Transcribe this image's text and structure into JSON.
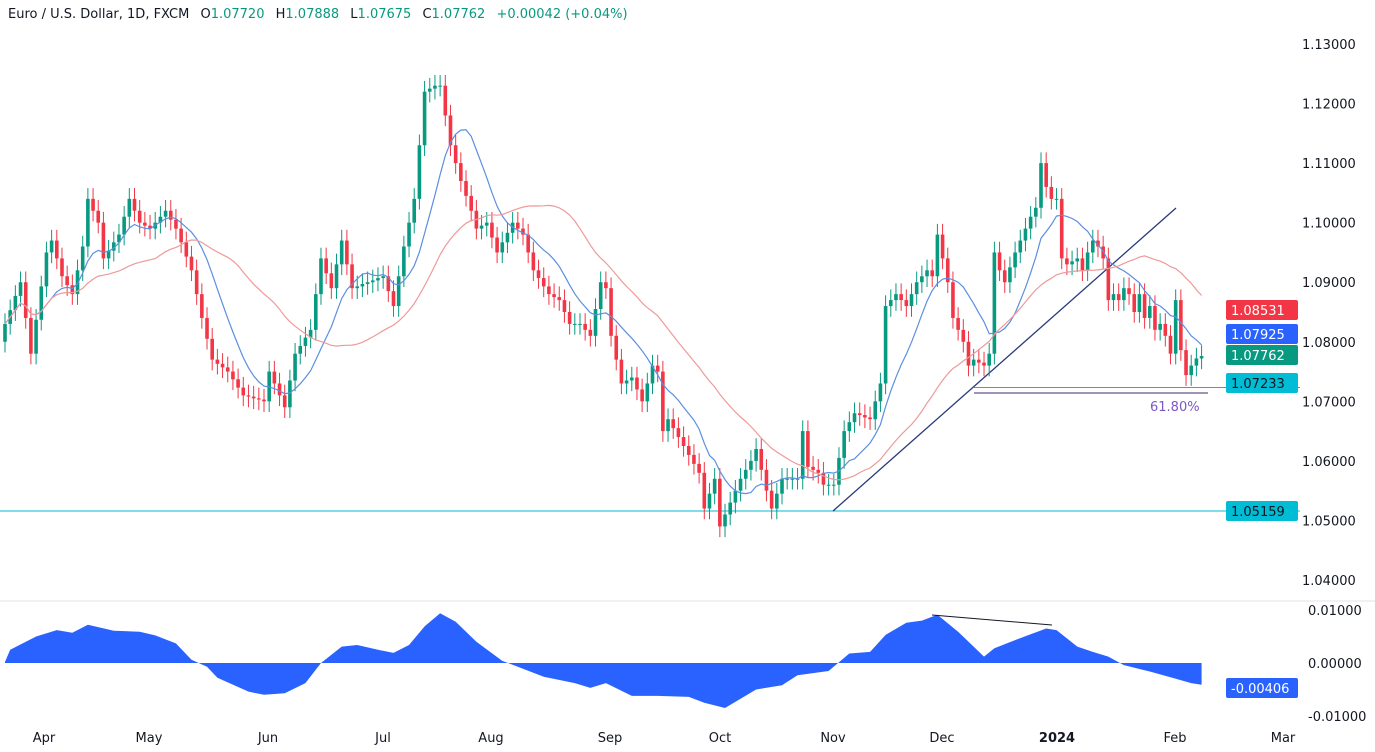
{
  "header": {
    "symbol": "Euro / U.S. Dollar, 1D, FXCM",
    "open_label": "O",
    "open": "1.07720",
    "high_label": "H",
    "high": "1.07888",
    "low_label": "L",
    "low": "1.07675",
    "close_label": "C",
    "close": "1.07762",
    "change": "+0.00042 (+0.04%)"
  },
  "colors": {
    "up": "#089981",
    "down": "#f23645",
    "ma_fast": "#5b8fe0",
    "ma_slow": "#ee9a9a",
    "oscillator": "#2962ff",
    "support": "#00bcd4",
    "trendline": "#2a3a7c",
    "fib": "#7e57c2"
  },
  "chart_data": {
    "type": "candlestick",
    "price_axis": {
      "ticks": [
        "1.13000",
        "1.12000",
        "1.11000",
        "1.10000",
        "1.09000",
        "1.08000",
        "1.07000",
        "1.06000",
        "1.05000",
        "1.04000"
      ],
      "range": [
        1.0325,
        1.1375
      ]
    },
    "time_axis": {
      "ticks": [
        "Apr",
        "May",
        "Jun",
        "Jul",
        "Aug",
        "Sep",
        "Oct",
        "Nov",
        "Dec",
        "2024",
        "Feb",
        "Mar"
      ]
    },
    "close": [
      1.083,
      1.0853,
      1.0877,
      1.09,
      1.084,
      1.078,
      1.0837,
      1.0893,
      1.095,
      1.097,
      1.094,
      1.091,
      1.0895,
      1.088,
      1.092,
      1.096,
      1.104,
      1.102,
      1.1,
      1.094,
      1.0953,
      1.0967,
      1.098,
      1.101,
      1.104,
      1.102,
      1.1,
      1.0995,
      1.099,
      1.1,
      1.101,
      1.102,
      1.1005,
      1.099,
      1.0967,
      1.0943,
      1.092,
      1.088,
      1.084,
      1.0805,
      1.077,
      1.0763,
      1.0757,
      1.075,
      1.0737,
      1.0723,
      1.071,
      1.0708,
      1.0705,
      1.0703,
      1.07,
      1.075,
      1.073,
      1.071,
      1.069,
      1.0735,
      1.078,
      1.0793,
      1.0807,
      1.082,
      1.088,
      1.094,
      1.0915,
      1.089,
      1.093,
      1.097,
      1.093,
      1.089,
      1.0893,
      1.0897,
      1.09,
      1.0903,
      1.0907,
      1.091,
      1.0885,
      1.086,
      1.091,
      1.096,
      1.1,
      1.104,
      1.113,
      1.122,
      1.1225,
      1.123,
      1.123,
      1.118,
      1.113,
      1.11,
      1.107,
      1.1045,
      1.102,
      1.099,
      1.0995,
      1.1,
      1.0975,
      1.095,
      1.0967,
      1.0983,
      1.1,
      1.099,
      1.098,
      1.095,
      1.092,
      1.0907,
      1.0893,
      1.088,
      1.0875,
      1.087,
      1.085,
      1.083,
      1.083,
      1.083,
      1.082,
      1.081,
      1.0855,
      1.09,
      1.089,
      1.081,
      1.077,
      1.073,
      1.0735,
      1.074,
      1.072,
      1.07,
      1.073,
      1.076,
      1.075,
      1.065,
      1.067,
      1.0655,
      1.064,
      1.0625,
      1.061,
      1.0595,
      1.058,
      1.052,
      1.0545,
      1.057,
      1.049,
      1.051,
      1.053,
      1.055,
      1.057,
      1.0585,
      1.06,
      1.062,
      1.0585,
      1.055,
      1.052,
      1.0545,
      1.057,
      1.057,
      1.057,
      1.057,
      1.065,
      1.059,
      1.0585,
      1.058,
      1.056,
      1.056,
      1.056,
      1.0605,
      1.065,
      1.0665,
      1.068,
      1.0677,
      1.0673,
      1.067,
      1.07,
      1.073,
      1.086,
      1.087,
      1.088,
      1.087,
      1.086,
      1.088,
      1.09,
      1.091,
      1.092,
      1.091,
      1.098,
      1.094,
      1.09,
      1.084,
      1.082,
      1.08,
      1.076,
      1.077,
      1.0765,
      1.076,
      1.078,
      1.095,
      1.092,
      1.09,
      1.0925,
      1.095,
      1.097,
      1.099,
      1.101,
      1.1025,
      1.11,
      1.106,
      1.104,
      1.104,
      1.094,
      1.093,
      1.0935,
      1.094,
      1.092,
      1.095,
      1.097,
      1.096,
      1.094,
      1.087,
      1.088,
      1.087,
      1.089,
      1.088,
      1.085,
      1.088,
      1.084,
      1.086,
      1.082,
      1.083,
      1.081,
      1.078,
      1.087,
      1.0786,
      1.0744,
      1.076,
      1.0772,
      1.0776
    ],
    "last_open": 1.0772,
    "oscillator": {
      "axis_ticks": [
        "0.01000",
        "0.00000",
        "-0.01000"
      ],
      "range": [
        -0.0101,
        0.0101
      ],
      "points": [
        [
          0,
          0.0002
        ],
        [
          1,
          0.0025
        ],
        [
          6,
          0.005
        ],
        [
          10,
          0.0062
        ],
        [
          13,
          0.0057
        ],
        [
          16,
          0.0072
        ],
        [
          21,
          0.0061
        ],
        [
          26,
          0.0059
        ],
        [
          29,
          0.0052
        ],
        [
          33,
          0.0037
        ],
        [
          36,
          0.0006
        ],
        [
          39,
          -0.0007
        ],
        [
          41,
          -0.0028
        ],
        [
          47,
          -0.0054
        ],
        [
          50,
          -0.006
        ],
        [
          54,
          -0.0057
        ],
        [
          58,
          -0.0038
        ],
        [
          61,
          0
        ],
        [
          65,
          0.0031
        ],
        [
          68,
          0.0034
        ],
        [
          72,
          0.0025
        ],
        [
          75,
          0.0019
        ],
        [
          78,
          0.0034
        ],
        [
          81,
          0.0069
        ],
        [
          84,
          0.0094
        ],
        [
          87,
          0.0078
        ],
        [
          91,
          0.004
        ],
        [
          96,
          0.0004
        ],
        [
          99,
          -0.0007
        ],
        [
          104,
          -0.0026
        ],
        [
          110,
          -0.0038
        ],
        [
          113,
          -0.0047
        ],
        [
          116,
          -0.0038
        ],
        [
          121,
          -0.0062
        ],
        [
          126,
          -0.0062
        ],
        [
          132,
          -0.0064
        ],
        [
          135,
          -0.0075
        ],
        [
          139,
          -0.0085
        ],
        [
          145,
          -0.005
        ],
        [
          150,
          -0.0042
        ],
        [
          153,
          -0.0023
        ],
        [
          159,
          -0.0015
        ],
        [
          163,
          0.0018
        ],
        [
          167,
          0.0021
        ],
        [
          170,
          0.0053
        ],
        [
          174,
          0.0076
        ],
        [
          177,
          0.008
        ],
        [
          180,
          0.0091
        ],
        [
          184,
          0.0059
        ],
        [
          189,
          0.0012
        ],
        [
          191,
          0.0028
        ],
        [
          196,
          0.0047
        ],
        [
          201,
          0.0065
        ],
        [
          203,
          0.0062
        ],
        [
          207,
          0.0031
        ],
        [
          210,
          0.0021
        ],
        [
          213,
          0.0012
        ],
        [
          216,
          -0.0004
        ],
        [
          221,
          -0.0016
        ],
        [
          225,
          -0.0027
        ],
        [
          229,
          -0.0038
        ],
        [
          231,
          -0.0041
        ]
      ]
    },
    "levels": {
      "support_1": "1.05159",
      "support_2": "1.07233",
      "fib_label": "61.80%"
    },
    "price_labels": {
      "ma_slow": "1.08531",
      "ma_fast": "1.07925",
      "last": "1.07762",
      "oscillator_last": "-0.00406"
    }
  }
}
